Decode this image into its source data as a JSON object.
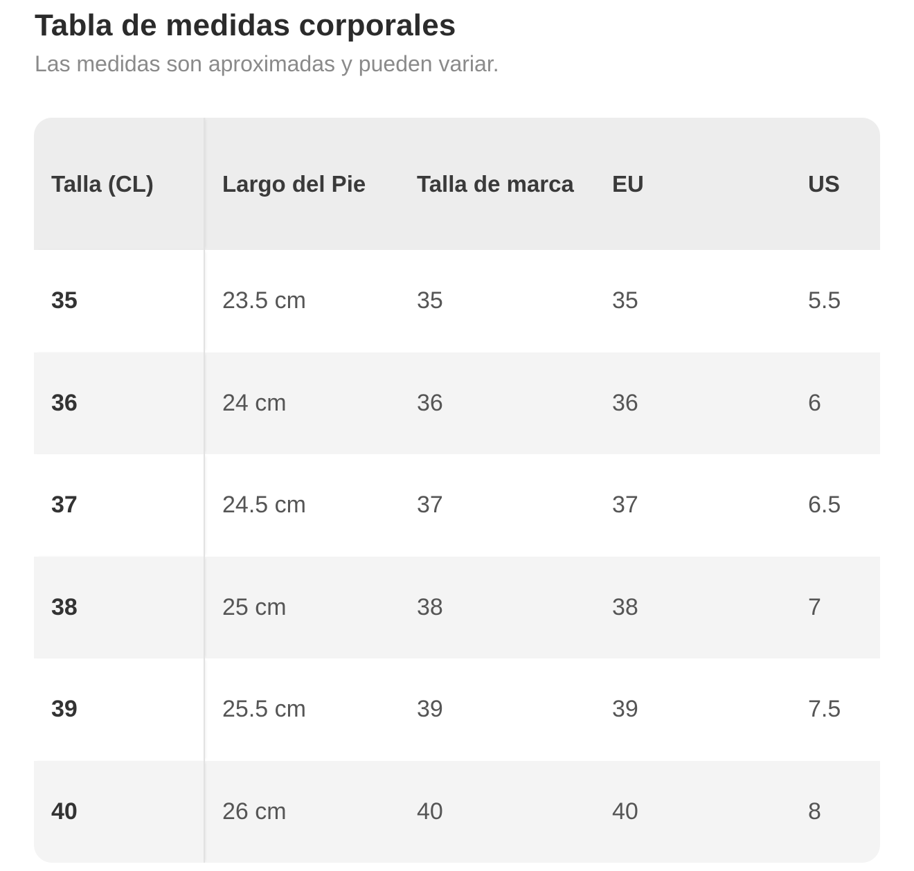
{
  "header": {
    "title": "Tabla de medidas corporales",
    "subtitle": "Las medidas son aproximadas y pueden variar."
  },
  "table": {
    "columns": [
      "Talla (CL)",
      "Largo del Pie",
      "Talla de marca",
      "EU",
      "US"
    ],
    "rows": [
      [
        "35",
        "23.5 cm",
        "35",
        "35",
        "5.5"
      ],
      [
        "36",
        "24 cm",
        "36",
        "36",
        "6"
      ],
      [
        "37",
        "24.5 cm",
        "37",
        "37",
        "6.5"
      ],
      [
        "38",
        "25 cm",
        "38",
        "38",
        "7"
      ],
      [
        "39",
        "25.5 cm",
        "39",
        "39",
        "7.5"
      ],
      [
        "40",
        "26 cm",
        "40",
        "40",
        "8"
      ]
    ]
  },
  "colors": {
    "header_bg": "#ededed",
    "stripe_bg": "#f4f4f4",
    "title": "#2b2b2b",
    "subtitle": "#8a8a8a"
  }
}
